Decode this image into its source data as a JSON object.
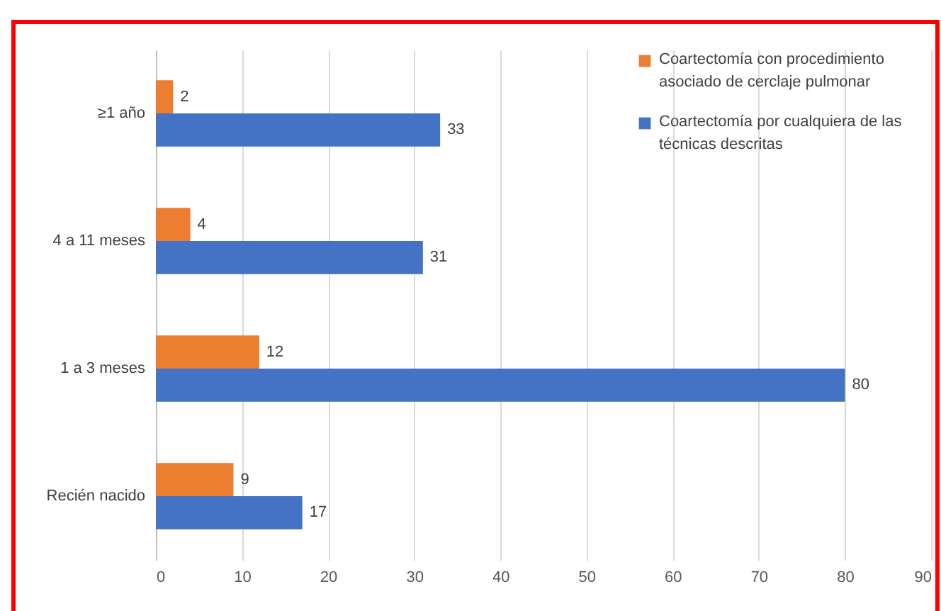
{
  "chart_data": {
    "type": "bar",
    "orientation": "horizontal",
    "categories": [
      "≥1 año",
      "4 a 11 meses",
      "1 a 3 meses",
      "Recién nacido"
    ],
    "series": [
      {
        "name": "Coartectomía con procedimiento asociado de cerclaje pulmonar",
        "color": "#ed7d31",
        "values": [
          2,
          4,
          12,
          9
        ]
      },
      {
        "name": "Coartectomía por cualquiera de las técnicas descritas",
        "color": "#4472c4",
        "values": [
          33,
          31,
          80,
          17
        ]
      }
    ],
    "xlim": [
      0,
      90
    ],
    "xticks": [
      0,
      10,
      20,
      30,
      40,
      50,
      60,
      70,
      80,
      90
    ],
    "grid": "x",
    "legend": "top right",
    "data_labels": true
  }
}
